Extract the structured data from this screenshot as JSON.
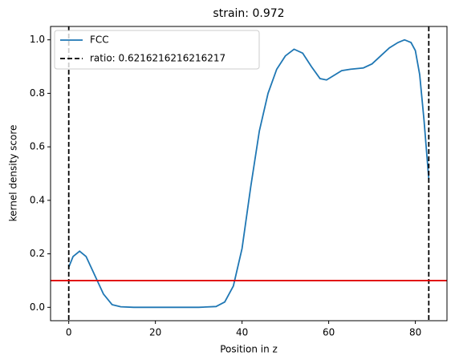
{
  "chart_data": {
    "type": "line",
    "title": "strain: 0.972",
    "xlabel": "Position in z",
    "ylabel": "kernel density score",
    "x": [
      0,
      1,
      2.5,
      4,
      6,
      8,
      10,
      12,
      15,
      20,
      30,
      34,
      36,
      38,
      40,
      42,
      44,
      46,
      48,
      50,
      52,
      54,
      56,
      58,
      59.5,
      61,
      63,
      65,
      68,
      70,
      72,
      74,
      76,
      77.5,
      79,
      80,
      81,
      82,
      83.1
    ],
    "series": [
      {
        "name": "FCC",
        "color": "#1f77b4",
        "values": [
          0.15,
          0.19,
          0.21,
          0.19,
          0.12,
          0.05,
          0.01,
          0.002,
          0,
          0,
          0,
          0.003,
          0.02,
          0.08,
          0.22,
          0.45,
          0.66,
          0.8,
          0.89,
          0.94,
          0.965,
          0.95,
          0.9,
          0.855,
          0.85,
          0.865,
          0.885,
          0.89,
          0.895,
          0.91,
          0.94,
          0.97,
          0.99,
          1.0,
          0.99,
          0.96,
          0.87,
          0.7,
          0.48
        ]
      }
    ],
    "vlines": {
      "name": "ratio: 0.6216216216216217",
      "color": "#000000",
      "values": [
        0,
        83.1
      ]
    },
    "hline": {
      "value": 0.1,
      "color": "#e00000"
    },
    "xlim": [
      -4.2,
      87.3
    ],
    "ylim": [
      -0.05,
      1.05
    ],
    "xticks": [
      0,
      20,
      40,
      60,
      80
    ],
    "yticks": [
      {
        "value": 0,
        "label": "0.0"
      },
      {
        "value": 0.2,
        "label": "0.2"
      },
      {
        "value": 0.4,
        "label": "0.4"
      },
      {
        "value": 0.6,
        "label": "0.6"
      },
      {
        "value": 0.8,
        "label": "0.8"
      },
      {
        "value": 1.0,
        "label": "1.0"
      }
    ],
    "legend": "upper left"
  }
}
